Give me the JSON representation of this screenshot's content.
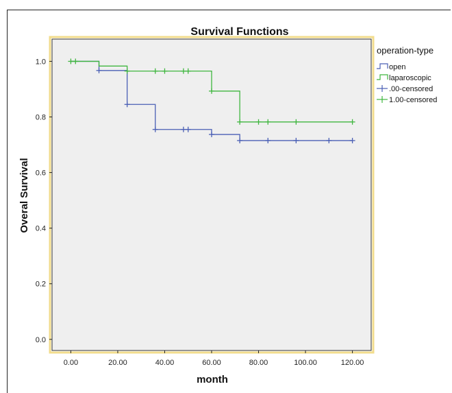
{
  "chart_data": {
    "type": "line",
    "title": "Survival Functions",
    "xlabel": "month",
    "ylabel": "Overal Survival",
    "xlim": [
      -8,
      128
    ],
    "ylim": [
      -0.04,
      1.08
    ],
    "x_ticks": [
      0,
      20,
      40,
      60,
      80,
      100,
      120
    ],
    "x_tick_labels": [
      "0.00",
      "20.00",
      "40.00",
      "60.00",
      "80.00",
      "100.00",
      "120.00"
    ],
    "y_ticks": [
      0,
      0.2,
      0.4,
      0.6,
      0.8,
      1.0
    ],
    "y_tick_labels": [
      "0.0",
      "0.2",
      "0.4",
      "0.6",
      "0.8",
      "1.0"
    ],
    "grid": false,
    "legend": {
      "title": "operation-type",
      "placement": "right",
      "entries": [
        {
          "label": "open",
          "kind": "step",
          "color": "#4a5fb5"
        },
        {
          "label": "laparoscopic",
          "kind": "step",
          "color": "#3fb63f"
        },
        {
          "label": ".00-censored",
          "kind": "censor",
          "color": "#4a5fb5"
        },
        {
          "label": "1.00-censored",
          "kind": "censor",
          "color": "#3fb63f"
        }
      ]
    },
    "series": [
      {
        "name": "open",
        "color": "#4a5fb5",
        "steps": [
          [
            0,
            1.0
          ],
          [
            12,
            0.967
          ],
          [
            24,
            0.845
          ],
          [
            36,
            0.755
          ],
          [
            60,
            0.737
          ],
          [
            72,
            0.715
          ],
          [
            120,
            0.715
          ]
        ],
        "censored": [
          [
            12,
            0.967
          ],
          [
            24,
            0.845
          ],
          [
            36,
            0.755
          ],
          [
            48,
            0.755
          ],
          [
            50,
            0.755
          ],
          [
            60,
            0.737
          ],
          [
            72,
            0.715
          ],
          [
            84,
            0.715
          ],
          [
            96,
            0.715
          ],
          [
            110,
            0.715
          ],
          [
            120,
            0.715
          ]
        ]
      },
      {
        "name": "laparoscopic",
        "color": "#3fb63f",
        "steps": [
          [
            0,
            1.0
          ],
          [
            12,
            0.983
          ],
          [
            24,
            0.965
          ],
          [
            60,
            0.893
          ],
          [
            72,
            0.782
          ],
          [
            120,
            0.782
          ]
        ],
        "censored": [
          [
            0,
            1.0
          ],
          [
            2,
            1.0
          ],
          [
            24,
            0.965
          ],
          [
            36,
            0.965
          ],
          [
            40,
            0.965
          ],
          [
            48,
            0.965
          ],
          [
            50,
            0.965
          ],
          [
            60,
            0.893
          ],
          [
            72,
            0.782
          ],
          [
            80,
            0.782
          ],
          [
            84,
            0.782
          ],
          [
            96,
            0.782
          ],
          [
            120,
            0.782
          ]
        ]
      }
    ]
  },
  "colors": {
    "plot_background": "#efefef",
    "plot_border": "#f2dc8c",
    "axis": "#222222"
  }
}
